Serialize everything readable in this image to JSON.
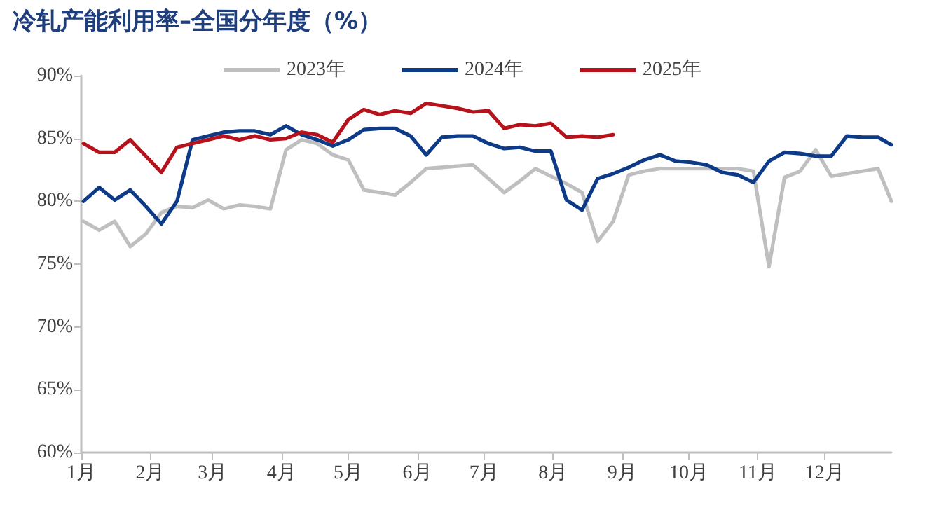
{
  "chart_data": {
    "type": "line",
    "title": "冷轧产能利用率–全国分年度（%）",
    "xlim": [
      "--01-01",
      "--12-31"
    ],
    "xticks": [
      {
        "value": "--01-01",
        "label": "1月"
      },
      {
        "value": "--02-01",
        "label": "2月"
      },
      {
        "value": "--03-01",
        "label": "3月"
      },
      {
        "value": "--04-01",
        "label": "4月"
      },
      {
        "value": "--05-01",
        "label": "5月"
      },
      {
        "value": "--06-01",
        "label": "6月"
      },
      {
        "value": "--07-01",
        "label": "7月"
      },
      {
        "value": "--08-01",
        "label": "8月"
      },
      {
        "value": "--09-01",
        "label": "9月"
      },
      {
        "value": "--10-01",
        "label": "10月"
      },
      {
        "value": "--11-01",
        "label": "11月"
      },
      {
        "value": "--12-01",
        "label": "12月"
      }
    ],
    "ylim": [
      60,
      90
    ],
    "yticks": [
      {
        "value": 60,
        "label": "60%"
      },
      {
        "value": 65,
        "label": "65%"
      },
      {
        "value": 70,
        "label": "70%"
      },
      {
        "value": 75,
        "label": "75%"
      },
      {
        "value": 80,
        "label": "80%"
      },
      {
        "value": 85,
        "label": "85%"
      },
      {
        "value": 90,
        "label": "90%"
      }
    ],
    "x": [
      "--01-02",
      "--01-09",
      "--01-16",
      "--01-23",
      "--01-30",
      "--02-06",
      "--02-13",
      "--02-20",
      "--02-27",
      "--03-06",
      "--03-13",
      "--03-20",
      "--03-27",
      "--04-03",
      "--04-10",
      "--04-17",
      "--04-24",
      "--05-01",
      "--05-08",
      "--05-15",
      "--05-22",
      "--05-29",
      "--06-05",
      "--06-12",
      "--06-19",
      "--06-26",
      "--07-03",
      "--07-10",
      "--07-17",
      "--07-24",
      "--07-31",
      "--08-07",
      "--08-14",
      "--08-21",
      "--08-28",
      "--09-04",
      "--09-11",
      "--09-18",
      "--09-25",
      "--10-02",
      "--10-09",
      "--10-16",
      "--10-23",
      "--10-30",
      "--11-06",
      "--11-13",
      "--11-20",
      "--11-27",
      "--12-04",
      "--12-11",
      "--12-18",
      "--12-25",
      "--12-31"
    ],
    "series": [
      {
        "name": "2023年",
        "color": "#bfbfbf",
        "values": [
          78.4,
          77.7,
          78.4,
          76.4,
          77.4,
          79.1,
          79.6,
          79.5,
          80.1,
          79.4,
          79.7,
          79.6,
          79.4,
          84.1,
          84.9,
          84.6,
          83.7,
          83.3,
          80.9,
          80.7,
          80.5,
          81.5,
          82.6,
          82.7,
          82.8,
          82.9,
          81.8,
          80.7,
          81.6,
          82.6,
          82.0,
          81.4,
          80.7,
          76.8,
          78.4,
          82.1,
          82.4,
          82.6,
          82.6,
          82.6,
          82.6,
          82.6,
          82.6,
          82.4,
          74.8,
          81.9,
          82.4,
          84.1,
          82.0,
          82.2,
          82.4,
          82.6,
          80.0
        ]
      },
      {
        "name": "2024年",
        "color": "#0d3b87",
        "values": [
          80.0,
          81.1,
          80.1,
          80.9,
          79.6,
          78.2,
          80.0,
          84.9,
          85.2,
          85.5,
          85.6,
          85.6,
          85.3,
          86.0,
          85.3,
          84.9,
          84.4,
          84.9,
          85.7,
          85.8,
          85.8,
          85.2,
          83.7,
          85.1,
          85.2,
          85.2,
          84.6,
          84.2,
          84.3,
          84.0,
          84.0,
          80.1,
          79.3,
          81.8,
          82.2,
          82.7,
          83.3,
          83.7,
          83.2,
          83.1,
          82.9,
          82.3,
          82.1,
          81.5,
          83.2,
          83.9,
          83.8,
          83.6,
          83.6,
          85.2,
          85.1,
          85.1,
          84.5
        ]
      },
      {
        "name": "2025年",
        "color": "#b5121b",
        "x": [
          "--01-02",
          "--01-09",
          "--01-16",
          "--01-23",
          "--01-30",
          "--02-06",
          "--02-13",
          "--02-20",
          "--02-27",
          "--03-06",
          "--03-13",
          "--03-20",
          "--03-27",
          "--04-03",
          "--04-10",
          "--04-17",
          "--04-24",
          "--05-01",
          "--05-08",
          "--05-15",
          "--05-22",
          "--05-29",
          "--06-05",
          "--06-12",
          "--06-19",
          "--06-26",
          "--07-03",
          "--07-10",
          "--07-17",
          "--07-24",
          "--07-31",
          "--08-07",
          "--08-14",
          "--08-21",
          "--08-28"
        ],
        "values": [
          84.6,
          83.9,
          83.9,
          84.9,
          83.6,
          82.3,
          84.3,
          84.6,
          84.9,
          85.2,
          84.9,
          85.2,
          84.9,
          85.0,
          85.5,
          85.3,
          84.7,
          86.5,
          87.3,
          86.9,
          87.2,
          87.0,
          87.8,
          87.6,
          87.4,
          87.1,
          87.2,
          85.8,
          86.1,
          86.0,
          86.2,
          85.1,
          85.2,
          85.1,
          85.3
        ]
      }
    ],
    "legend": "top",
    "grid": false,
    "marker": "none",
    "line_style": "solid"
  }
}
